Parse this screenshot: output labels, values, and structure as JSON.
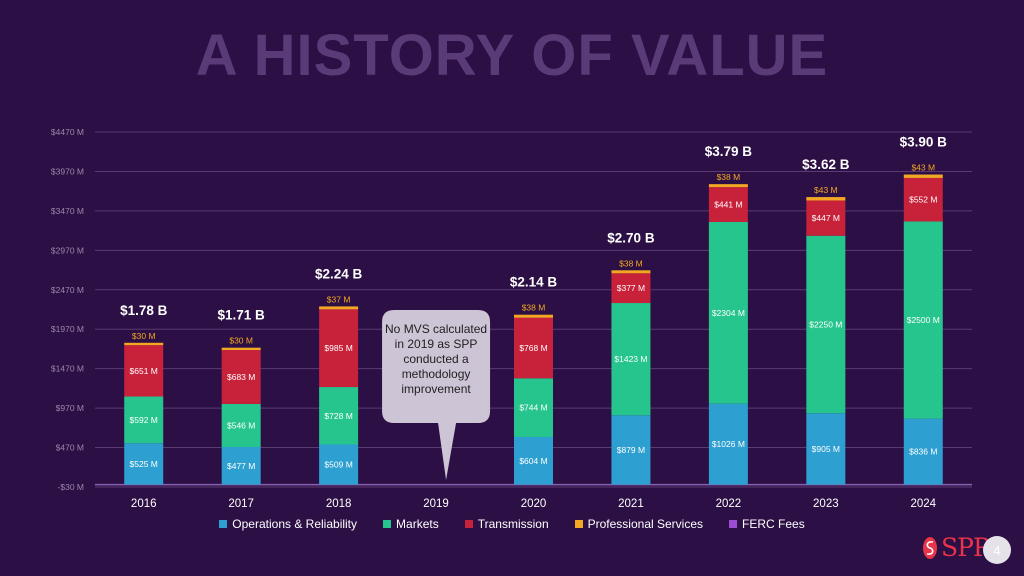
{
  "title": "A HISTORY OF VALUE",
  "colors": {
    "background": "#2c0f44",
    "ops": "#2d9fd0",
    "markets": "#27c58e",
    "transmission": "#c8213a",
    "professional": "#f2a823",
    "ferc": "#9b4dd6",
    "grid": "#5a3b72",
    "axis_text": "#9a88ad"
  },
  "chart_data": {
    "type": "bar",
    "stacked": true,
    "title": "A HISTORY OF VALUE",
    "categories": [
      "2016",
      "2017",
      "2018",
      "2019",
      "2020",
      "2021",
      "2022",
      "2023",
      "2024"
    ],
    "ylim": [
      -30,
      4470
    ],
    "yticks": [
      -30,
      470,
      970,
      1470,
      1970,
      2470,
      2970,
      3470,
      3970,
      4470
    ],
    "ytick_labels": [
      "-$30 M",
      "$470 M",
      "$970 M",
      "$1470 M",
      "$1970 M",
      "$2470 M",
      "$2970 M",
      "$3470 M",
      "$3970 M",
      "$4470 M"
    ],
    "series": [
      {
        "name": "Operations & Reliability",
        "color_key": "ops",
        "values": [
          525,
          477,
          509,
          null,
          604,
          879,
          1026,
          905,
          836
        ],
        "labels": [
          "$525 M",
          "$477 M",
          "$509 M",
          "",
          "$604 M",
          "$879 M",
          "$1026 M",
          "$905 M",
          "$836 M"
        ]
      },
      {
        "name": "Markets",
        "color_key": "markets",
        "values": [
          592,
          546,
          728,
          null,
          744,
          1423,
          2304,
          2250,
          2500
        ],
        "labels": [
          "$592 M",
          "$546 M",
          "$728 M",
          "",
          "$744 M",
          "$1423 M",
          "$2304 M",
          "$2250 M",
          "$2500 M"
        ]
      },
      {
        "name": "Transmission",
        "color_key": "transmission",
        "values": [
          651,
          683,
          985,
          null,
          768,
          377,
          441,
          447,
          552
        ],
        "labels": [
          "$651 M",
          "$683 M",
          "$985 M",
          "",
          "$768 M",
          "$377 M",
          "$441 M",
          "$447 M",
          "$552 M"
        ]
      },
      {
        "name": "Professional Services",
        "color_key": "professional",
        "values": [
          30,
          30,
          37,
          null,
          38,
          38,
          38,
          43,
          43
        ],
        "labels": [
          "$30 M",
          "$30 M",
          "$37 M",
          "",
          "$38 M",
          "$38 M",
          "$38 M",
          "$43 M",
          "$43 M"
        ]
      },
      {
        "name": "FERC Fees",
        "color_key": "ferc",
        "values": [
          null,
          null,
          null,
          null,
          null,
          null,
          null,
          null,
          null
        ],
        "labels": [
          "",
          "",
          "",
          "",
          "",
          "",
          "",
          "",
          ""
        ]
      }
    ],
    "totals": [
      "$1.78 B",
      "$1.71 B",
      "$2.24 B",
      "",
      "$2.14 B",
      "$2.70 B",
      "$3.79 B",
      "$3.62 B",
      "$3.90 B"
    ],
    "legend_position": "bottom",
    "annotations": [
      {
        "category": "2019",
        "text": "No MVS calculated in 2019 as SPP conducted a methodology improvement"
      }
    ]
  },
  "legend": [
    {
      "label": "Operations & Reliability",
      "color_key": "ops"
    },
    {
      "label": "Markets",
      "color_key": "markets"
    },
    {
      "label": "Transmission",
      "color_key": "transmission"
    },
    {
      "label": "Professional Services",
      "color_key": "professional"
    },
    {
      "label": "FERC Fees",
      "color_key": "ferc"
    }
  ],
  "callout": {
    "text": "No MVS calculated in 2019 as SPP conducted a methodology improvement"
  },
  "logo": {
    "text": "SPP"
  },
  "page_number": "4"
}
